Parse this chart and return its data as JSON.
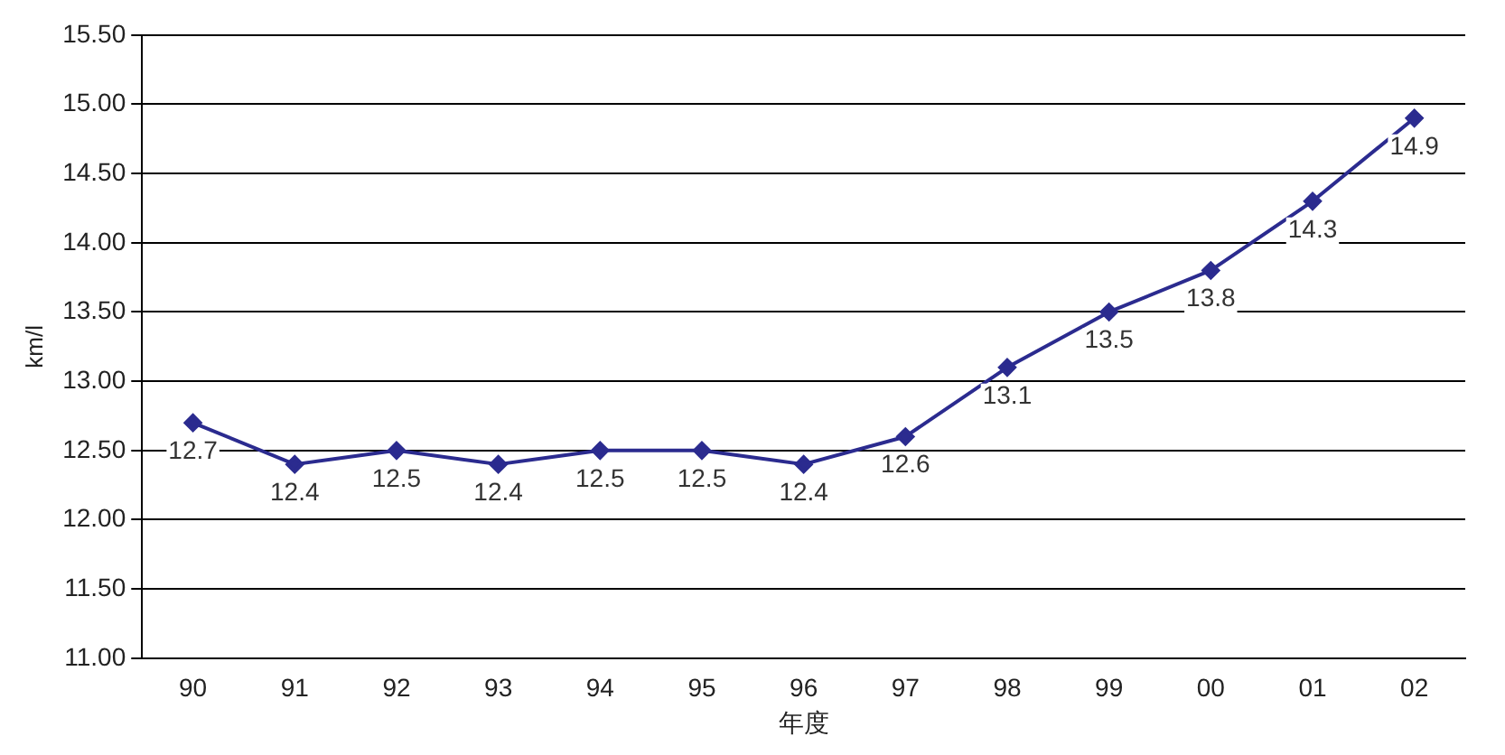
{
  "chart_data": {
    "type": "line",
    "xlabel": "年度",
    "ylabel": "km/l",
    "categories": [
      "90",
      "91",
      "92",
      "93",
      "94",
      "95",
      "96",
      "97",
      "98",
      "99",
      "00",
      "01",
      "02"
    ],
    "series": [
      {
        "color": "#2b2b8f",
        "values": [
          12.7,
          12.4,
          12.5,
          12.4,
          12.5,
          12.5,
          12.4,
          12.6,
          13.1,
          13.5,
          13.8,
          14.3,
          14.9
        ]
      }
    ],
    "ylim": [
      11,
      15.5
    ],
    "yticks": [
      {
        "value": 11,
        "label": "11.00"
      },
      {
        "value": 11.5,
        "label": "11.50"
      },
      {
        "value": 12,
        "label": "12.00"
      },
      {
        "value": 12.5,
        "label": "12.50"
      },
      {
        "value": 13,
        "label": "13.00"
      },
      {
        "value": 13.5,
        "label": "13.50"
      },
      {
        "value": 14,
        "label": "14.00"
      },
      {
        "value": 14.5,
        "label": "14.50"
      },
      {
        "value": 15,
        "label": "15.00"
      },
      {
        "value": 15.5,
        "label": "15.50"
      }
    ],
    "grid": "y",
    "legend": false,
    "marker": "diamond",
    "line_style": "solid",
    "data_labels": true
  }
}
